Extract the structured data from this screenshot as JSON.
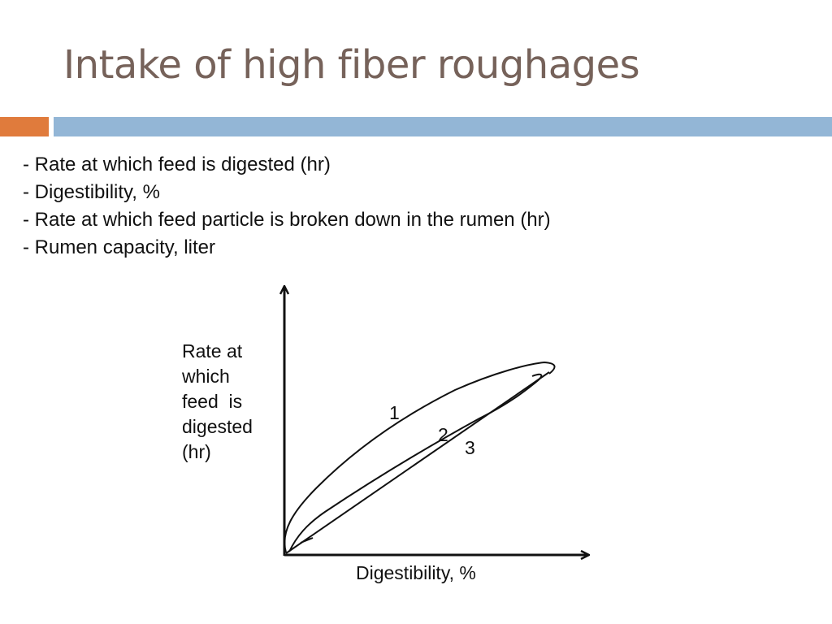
{
  "slide": {
    "title": "Intake of high fiber roughages",
    "bullets": [
      "- Rate at which feed is digested (hr)",
      "- Digestibility, %",
      "- Rate at which feed particle is broken down in the rumen (hr)",
      "- Rumen capacity, liter"
    ]
  },
  "diagram": {
    "y_axis_label": "Rate at\nwhich\nfeed  is\ndigested\n(hr)",
    "x_axis_label": "Digestibility, %",
    "curve_labels": [
      "1",
      "2",
      "3"
    ]
  },
  "colors": {
    "title": "#76625a",
    "accent_orange": "#e07b3c",
    "accent_blue": "#93b6d6",
    "text": "#111111"
  }
}
